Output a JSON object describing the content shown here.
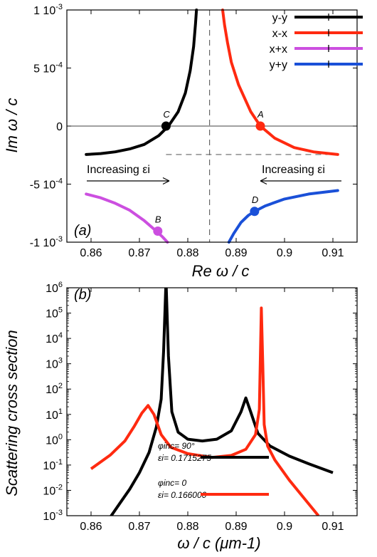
{
  "chart_data": [
    {
      "type": "line",
      "panel_label": "(a)",
      "xlabel": "Re ω / c",
      "ylabel": "Im ω / c",
      "xlim": [
        0.855,
        0.915
      ],
      "ylim": [
        -0.001,
        0.001
      ],
      "x_ticks": [
        {
          "v": 0.86,
          "label": "0.86"
        },
        {
          "v": 0.87,
          "label": "0.87"
        },
        {
          "v": 0.88,
          "label": "0.88"
        },
        {
          "v": 0.89,
          "label": "0.89"
        },
        {
          "v": 0.9,
          "label": "0.9"
        },
        {
          "v": 0.91,
          "label": "0.91"
        }
      ],
      "y_ticks": [
        {
          "v": 0.001,
          "label": "1 10-3"
        },
        {
          "v": 0.0005,
          "label": "5 10-4"
        },
        {
          "v": 0,
          "label": "0"
        },
        {
          "v": -0.0005,
          "label": "-5 10-4"
        },
        {
          "v": -0.001,
          "label": "-1 10-3"
        }
      ],
      "legend_position": "top-right",
      "series": [
        {
          "name": "y-y",
          "color": "#000000",
          "x": [
            0.859,
            0.862,
            0.865,
            0.868,
            0.871,
            0.874,
            0.876,
            0.878,
            0.8795,
            0.8805,
            0.8812,
            0.8816,
            0.8818
          ],
          "y": [
            -0.000245,
            -0.000237,
            -0.000222,
            -0.000197,
            -0.000158,
            -8.2e-05,
            0.0,
            0.000123,
            0.000285,
            0.000478,
            0.000685,
            0.000885,
            0.001
          ]
        },
        {
          "name": "x-x",
          "color": "#ff2a10",
          "x": [
            0.8872,
            0.8876,
            0.8882,
            0.889,
            0.8905,
            0.893,
            0.895,
            0.898,
            0.902,
            0.906,
            0.911
          ],
          "y": [
            0.001,
            0.00087,
            0.00072,
            0.00055,
            0.000355,
            0.000125,
            0.0,
            -0.000105,
            -0.000185,
            -0.000222,
            -0.000245
          ]
        },
        {
          "name": "x+x",
          "color": "#cc4fe0",
          "x": [
            0.859,
            0.862,
            0.865,
            0.868,
            0.871,
            0.8735,
            0.8748,
            0.8758
          ],
          "y": [
            -0.000585,
            -0.000618,
            -0.000665,
            -0.000725,
            -0.000815,
            -0.000905,
            -0.000955,
            -0.001
          ]
        },
        {
          "name": "y+y",
          "color": "#1a50d8",
          "x": [
            0.8885,
            0.8895,
            0.891,
            0.8925,
            0.8938,
            0.896,
            0.9,
            0.905,
            0.911
          ],
          "y": [
            -0.001,
            -0.000925,
            -0.00083,
            -0.00077,
            -0.000735,
            -0.000688,
            -0.000628,
            -0.000585,
            -0.000555
          ]
        }
      ],
      "markers": [
        {
          "label": "C",
          "x": 0.8755,
          "y": 0.0,
          "color": "#000000"
        },
        {
          "label": "A",
          "x": 0.895,
          "y": 0.0,
          "color": "#ff2a10"
        },
        {
          "label": "B",
          "x": 0.8738,
          "y": -0.000905,
          "color": "#cc4fe0"
        },
        {
          "label": "D",
          "x": 0.8938,
          "y": -0.000735,
          "color": "#1a50d8"
        }
      ],
      "reference_lines": {
        "vertical_dashed_x": 0.8845,
        "horizontal_dashed": {
          "y": -0.000245,
          "x_from": 0.8755,
          "x_to": 0.911
        },
        "zero_line_y": 0
      },
      "annotations": [
        {
          "text": "Increasing εi",
          "arrow": "right"
        },
        {
          "text": "Increasing εi",
          "arrow": "left"
        }
      ]
    },
    {
      "type": "line",
      "panel_label": "(b)",
      "xlabel": "ω / c (μm-1)",
      "ylabel": "Scattering cross section",
      "yscale": "log",
      "xlim": [
        0.855,
        0.915
      ],
      "ylim_exp": [
        -3,
        6
      ],
      "x_ticks": [
        {
          "v": 0.86,
          "label": "0.86"
        },
        {
          "v": 0.87,
          "label": "0.87"
        },
        {
          "v": 0.88,
          "label": "0.88"
        },
        {
          "v": 0.89,
          "label": "0.89"
        },
        {
          "v": 0.9,
          "label": "0.9"
        },
        {
          "v": 0.91,
          "label": "0.91"
        }
      ],
      "y_ticks_exp": [
        6,
        5,
        4,
        3,
        2,
        1,
        0,
        -1,
        -2,
        -3
      ],
      "y_tick_base": "10",
      "series": [
        {
          "name_lines": [
            "φinc= 90°",
            "εi= 0.1715275"
          ],
          "color": "#000000",
          "x": [
            0.864,
            0.866,
            0.868,
            0.87,
            0.872,
            0.8735,
            0.8745,
            0.875,
            0.8755,
            0.876,
            0.8767,
            0.878,
            0.88,
            0.883,
            0.886,
            0.889,
            0.891,
            0.892,
            0.893,
            0.8945,
            0.897,
            0.901,
            0.905,
            0.91
          ],
          "y_exp": [
            -3.05,
            -2.5,
            -1.95,
            -1.3,
            -0.5,
            0.5,
            1.6,
            3.5,
            6.3,
            3.3,
            1.1,
            0.3,
            0.02,
            -0.05,
            0.02,
            0.35,
            1.1,
            1.65,
            1.1,
            0.25,
            -0.25,
            -0.65,
            -0.95,
            -1.3
          ]
        },
        {
          "name_lines": [
            "φinc= 0",
            "εi= 0.166000"
          ],
          "color": "#ff2a10",
          "x": [
            0.86,
            0.864,
            0.867,
            0.869,
            0.8705,
            0.8718,
            0.873,
            0.8745,
            0.8765,
            0.88,
            0.885,
            0.889,
            0.892,
            0.894,
            0.8948,
            0.8952,
            0.8955,
            0.8958,
            0.8965,
            0.898,
            0.901,
            0.904,
            0.907
          ],
          "y_exp": [
            -1.15,
            -0.6,
            -0.05,
            0.55,
            1.05,
            1.35,
            1.0,
            0.2,
            -0.3,
            -0.55,
            -0.7,
            -0.62,
            -0.38,
            0.2,
            1.2,
            5.2,
            3.0,
            0.6,
            -0.25,
            -0.8,
            -1.6,
            -2.3,
            -3.0
          ]
        }
      ]
    }
  ]
}
